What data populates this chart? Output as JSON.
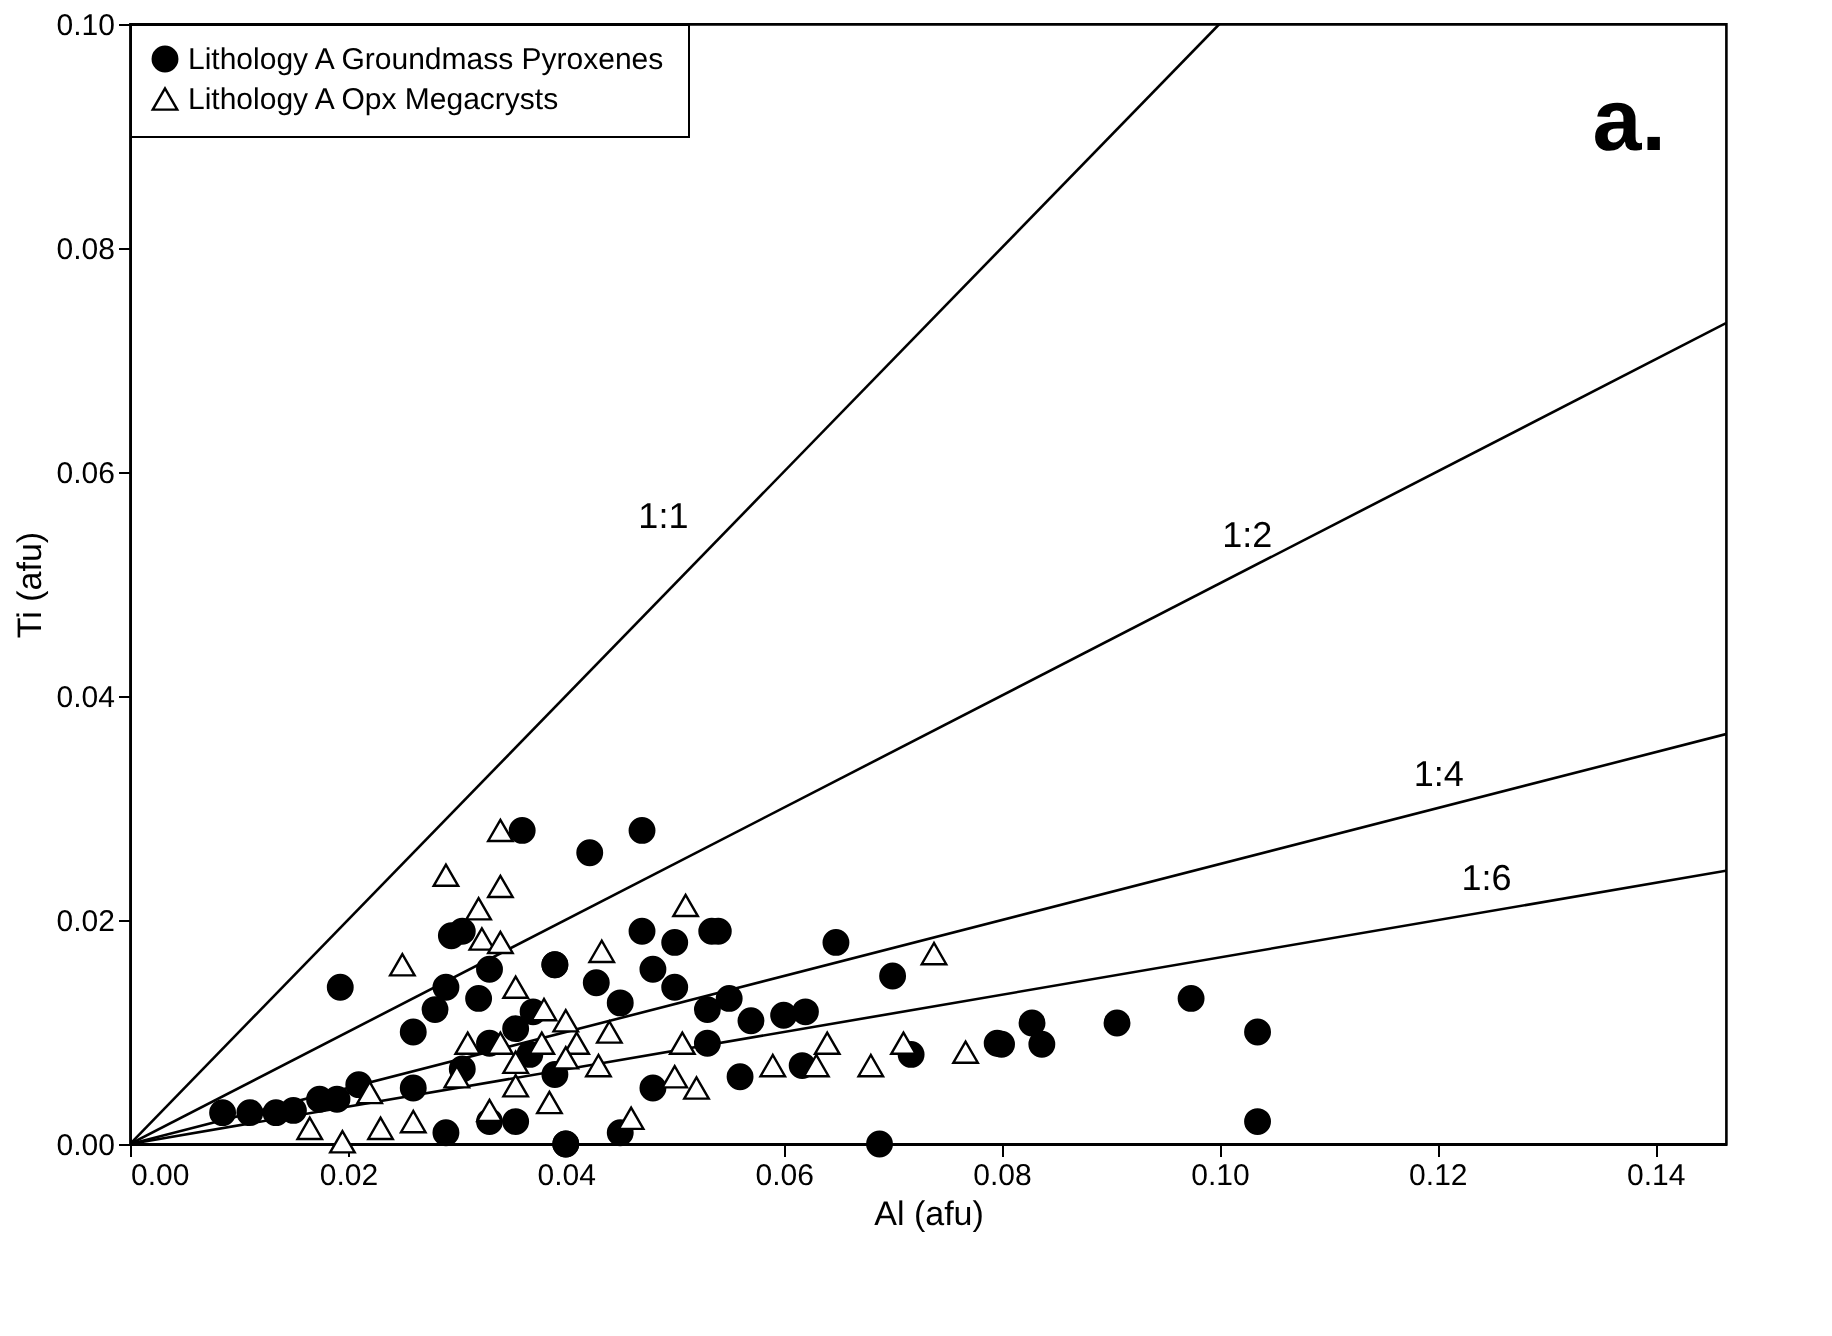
{
  "chart_data": {
    "type": "scatter",
    "xlabel": "Al (afu)",
    "ylabel": "Ti (afu)",
    "xlim": [
      0,
      0.1465
    ],
    "ylim": [
      0,
      0.1
    ],
    "xticks": [
      {
        "value": 0,
        "label": "0.00"
      },
      {
        "value": 0.02,
        "label": "0.02"
      },
      {
        "value": 0.04,
        "label": "0.04"
      },
      {
        "value": 0.06,
        "label": "0.06"
      },
      {
        "value": 0.08,
        "label": "0.08"
      },
      {
        "value": 0.1,
        "label": "0.10"
      },
      {
        "value": 0.12,
        "label": "0.12"
      },
      {
        "value": 0.14,
        "label": "0.14"
      }
    ],
    "yticks": [
      {
        "value": 0,
        "label": "0.00"
      },
      {
        "value": 0.02,
        "label": "0.02"
      },
      {
        "value": 0.04,
        "label": "0.04"
      },
      {
        "value": 0.06,
        "label": "0.06"
      },
      {
        "value": 0.08,
        "label": "0.08"
      },
      {
        "value": 0.1,
        "label": "0.10"
      }
    ],
    "grid": false,
    "legend": "top left",
    "series": [
      {
        "name": "Lithology A Groundmass Pyroxenes",
        "marker": "circle",
        "color": "#000000",
        "x": [
          0.0085,
          0.011,
          0.0134,
          0.015,
          0.0174,
          0.019,
          0.0193,
          0.021,
          0.026,
          0.026,
          0.028,
          0.029,
          0.0295,
          0.0305,
          0.0305,
          0.032,
          0.033,
          0.033,
          0.029,
          0.033,
          0.0354,
          0.0354,
          0.0367,
          0.039,
          0.039,
          0.036,
          0.04,
          0.037,
          0.0422,
          0.047,
          0.047,
          0.05,
          0.0534,
          0.054,
          0.048,
          0.05,
          0.055,
          0.057,
          0.053,
          0.06,
          0.062,
          0.053,
          0.056,
          0.048,
          0.0617,
          0.045,
          0.0428,
          0.039,
          0.04,
          0.045,
          0.0648,
          0.07,
          0.0717,
          0.0688,
          0.0796,
          0.08,
          0.0828,
          0.0837,
          0.0906,
          0.0974,
          0.1035,
          0.1035
        ],
        "values": [
          0.0028,
          0.0028,
          0.0028,
          0.003,
          0.004,
          0.004,
          0.014,
          0.0053,
          0.005,
          0.01,
          0.012,
          0.014,
          0.0186,
          0.019,
          0.0067,
          0.013,
          0.0156,
          0.009,
          0.001,
          0.002,
          0.002,
          0.0103,
          0.008,
          0.0062,
          0.016,
          0.028,
          0.0,
          0.0118,
          0.026,
          0.028,
          0.019,
          0.018,
          0.019,
          0.019,
          0.0156,
          0.014,
          0.013,
          0.011,
          0.012,
          0.0115,
          0.0118,
          0.009,
          0.006,
          0.005,
          0.007,
          0.0126,
          0.0144,
          0.016,
          0.0,
          0.001,
          0.018,
          0.015,
          0.008,
          0.0,
          0.009,
          0.0089,
          0.0108,
          0.0089,
          0.0108,
          0.013,
          0.01,
          0.002
        ]
      },
      {
        "name": "Lithology A Opx Megacrysts",
        "marker": "triangle",
        "color": "#000000",
        "x": [
          0.034,
          0.029,
          0.034,
          0.032,
          0.025,
          0.0323,
          0.034,
          0.0354,
          0.038,
          0.031,
          0.034,
          0.0378,
          0.03,
          0.0354,
          0.022,
          0.0165,
          0.0195,
          0.023,
          0.026,
          0.033,
          0.0385,
          0.0354,
          0.051,
          0.0433,
          0.04,
          0.041,
          0.044,
          0.04,
          0.043,
          0.0507,
          0.05,
          0.052,
          0.046,
          0.059,
          0.063,
          0.064,
          0.068,
          0.071,
          0.0738,
          0.0767
        ],
        "values": [
          0.028,
          0.024,
          0.023,
          0.021,
          0.016,
          0.0183,
          0.018,
          0.014,
          0.012,
          0.009,
          0.009,
          0.009,
          0.006,
          0.0073,
          0.0046,
          0.0014,
          0.0002,
          0.0014,
          0.002,
          0.003,
          0.0037,
          0.0052,
          0.0213,
          0.0172,
          0.011,
          0.009,
          0.01,
          0.0077,
          0.007,
          0.009,
          0.006,
          0.005,
          0.0023,
          0.007,
          0.007,
          0.009,
          0.007,
          0.009,
          0.017,
          0.0082
        ]
      },
      {
        "name": "1:1",
        "type": "line",
        "color": "#000000",
        "x": [
          0,
          0.1
        ],
        "values": [
          0,
          0.1
        ]
      },
      {
        "name": "1:2",
        "type": "line",
        "color": "#000000",
        "x": [
          0,
          0.1465
        ],
        "values": [
          0,
          0.0733
        ]
      },
      {
        "name": "1:4",
        "type": "line",
        "color": "#000000",
        "x": [
          0,
          0.1465
        ],
        "values": [
          0,
          0.0366
        ]
      },
      {
        "name": "1:6",
        "type": "line",
        "color": "#000000",
        "x": [
          0,
          0.1465
        ],
        "values": [
          0,
          0.0244
        ]
      }
    ],
    "annotations": [
      "a."
    ]
  }
}
